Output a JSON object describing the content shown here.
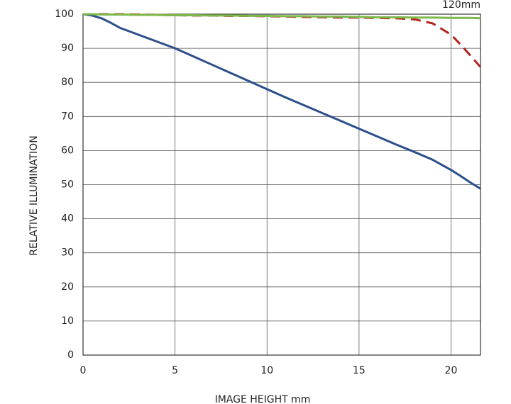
{
  "chart_data": {
    "type": "line",
    "title": "120mm",
    "xlabel": "IMAGE HEIGHT   mm",
    "ylabel": "RELATIVE ILLUMINATION",
    "x": [
      0,
      0.5,
      1,
      1.5,
      2,
      3,
      4,
      5,
      6,
      7,
      8,
      9,
      10,
      11,
      12,
      13,
      14,
      15,
      16,
      17,
      18,
      19,
      20,
      20.5,
      21,
      21.6
    ],
    "series": [
      {
        "color": "#2b4f8c",
        "dash": false,
        "values": [
          100,
          99.6,
          98.8,
          97.5,
          96,
          94,
          92,
          90,
          87.6,
          85.2,
          82.8,
          80.4,
          78,
          75.6,
          73.3,
          71,
          68.7,
          66.4,
          64.1,
          61.8,
          59.6,
          57.3,
          54.3,
          52.6,
          50.8,
          48.8
        ]
      },
      {
        "color": "#b3241e",
        "dash": true,
        "values": [
          100,
          100,
          100,
          100,
          100,
          99.9,
          99.8,
          99.7,
          99.6,
          99.6,
          99.5,
          99.5,
          99.4,
          99.3,
          99.2,
          99.1,
          99,
          99,
          98.9,
          98.8,
          98.5,
          97.3,
          94,
          91.2,
          88.2,
          84.5
        ]
      },
      {
        "color": "#7cb84a",
        "dash": false,
        "values": [
          100,
          100,
          99.9,
          99.9,
          99.9,
          99.8,
          99.8,
          99.7,
          99.7,
          99.6,
          99.6,
          99.5,
          99.5,
          99.4,
          99.4,
          99.3,
          99.3,
          99.2,
          99.1,
          99.1,
          99,
          99,
          98.9,
          98.9,
          98.9,
          98.8
        ]
      }
    ],
    "xlim": [
      0,
      21.6
    ],
    "ylim": [
      0,
      100
    ],
    "xticks": [
      0,
      5,
      10,
      15,
      20
    ],
    "yticks": [
      0,
      10,
      20,
      30,
      40,
      50,
      60,
      70,
      80,
      90,
      100
    ],
    "grid": true
  }
}
